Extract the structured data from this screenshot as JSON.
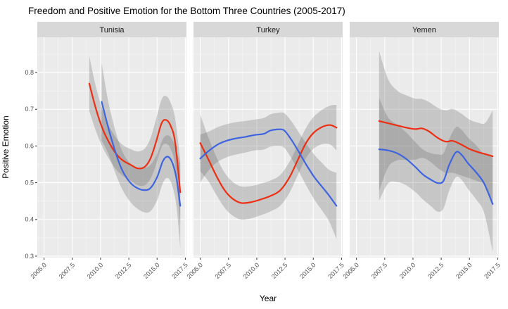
{
  "title": "Freedom and Positive Emotion for the Bottom Three Countries (2005-2017)",
  "axes": {
    "x_label": "Year",
    "y_label": "Positive Emotion",
    "x_tick_labels": [
      "2005.0",
      "2007.5",
      "2010.0",
      "2012.5",
      "2015.0",
      "2017.5"
    ],
    "x_tick_values": [
      2005,
      2007.5,
      2010,
      2012.5,
      2015,
      2017.5
    ],
    "x_minor_values": [
      2006.25,
      2008.75,
      2011.25,
      2013.75,
      2016.25
    ],
    "y_tick_labels": [
      "0.3",
      "0.4",
      "0.5",
      "0.6",
      "0.7",
      "0.8"
    ],
    "y_tick_values": [
      0.3,
      0.4,
      0.5,
      0.6,
      0.7,
      0.8
    ],
    "y_minor_values": [
      0.35,
      0.45,
      0.55,
      0.65,
      0.75,
      0.85
    ],
    "x_domain": [
      2004.4,
      2017.6
    ],
    "y_domain": [
      0.296,
      0.896
    ]
  },
  "colors": {
    "red_line": "#EE2E12",
    "blue_line": "#3E64E0",
    "band": "rgba(100,100,100,0.27)",
    "panel_bg": "#EBEBEB",
    "strip_bg": "#D8D8D8",
    "grid_major": "#FFFFFF",
    "grid_minor": "rgba(255,255,255,0.6)",
    "tick_text": "#4D4D4D",
    "tick_mark": "#333333",
    "strip_text": "#1A1A1A",
    "title_text": "#000000"
  },
  "chart_data": {
    "type": "line",
    "smoothed": true,
    "confidence_bands": true,
    "legend": "none",
    "facet_variable_values": [
      "Tunisia",
      "Turkey",
      "Yemen"
    ],
    "point_format": "[year, positive_emotion, band_halfwidth]",
    "facets": [
      {
        "label": "Tunisia",
        "series": [
          {
            "color": "red",
            "points": [
              [
                2009.0,
                0.77,
                0.075
              ],
              [
                2009.6,
                0.7,
                0.06
              ],
              [
                2010.2,
                0.645,
                0.05
              ],
              [
                2010.8,
                0.607,
                0.045
              ],
              [
                2011.4,
                0.578,
                0.043
              ],
              [
                2012.0,
                0.56,
                0.042
              ],
              [
                2012.7,
                0.548,
                0.043
              ],
              [
                2013.3,
                0.539,
                0.046
              ],
              [
                2013.9,
                0.543,
                0.05
              ],
              [
                2014.4,
                0.565,
                0.055
              ],
              [
                2014.9,
                0.61,
                0.062
              ],
              [
                2015.4,
                0.662,
                0.065
              ],
              [
                2015.8,
                0.671,
                0.065
              ],
              [
                2016.2,
                0.655,
                0.063
              ],
              [
                2016.6,
                0.61,
                0.065
              ],
              [
                2017.05,
                0.474,
                0.088
              ]
            ]
          },
          {
            "color": "blue",
            "points": [
              [
                2010.1,
                0.72,
                0.105
              ],
              [
                2010.7,
                0.648,
                0.07
              ],
              [
                2011.3,
                0.585,
                0.058
              ],
              [
                2011.9,
                0.535,
                0.052
              ],
              [
                2012.5,
                0.505,
                0.052
              ],
              [
                2013.1,
                0.488,
                0.055
              ],
              [
                2013.8,
                0.48,
                0.06
              ],
              [
                2014.4,
                0.485,
                0.063
              ],
              [
                2015.0,
                0.515,
                0.063
              ],
              [
                2015.5,
                0.558,
                0.06
              ],
              [
                2015.9,
                0.571,
                0.058
              ],
              [
                2016.3,
                0.558,
                0.062
              ],
              [
                2016.7,
                0.515,
                0.075
              ],
              [
                2017.05,
                0.437,
                0.115
              ]
            ]
          }
        ]
      },
      {
        "label": "Turkey",
        "series": [
          {
            "color": "red",
            "points": [
              [
                2005.0,
                0.608,
                0.077
              ],
              [
                2005.7,
                0.565,
                0.06
              ],
              [
                2006.4,
                0.52,
                0.052
              ],
              [
                2007.1,
                0.482,
                0.048
              ],
              [
                2007.8,
                0.458,
                0.046
              ],
              [
                2008.6,
                0.445,
                0.045
              ],
              [
                2009.5,
                0.447,
                0.044
              ],
              [
                2010.4,
                0.455,
                0.043
              ],
              [
                2011.3,
                0.465,
                0.042
              ],
              [
                2012.1,
                0.48,
                0.042
              ],
              [
                2012.9,
                0.515,
                0.042
              ],
              [
                2013.6,
                0.56,
                0.041
              ],
              [
                2014.3,
                0.605,
                0.041
              ],
              [
                2015.0,
                0.635,
                0.043
              ],
              [
                2015.8,
                0.652,
                0.047
              ],
              [
                2016.5,
                0.657,
                0.053
              ],
              [
                2017.05,
                0.65,
                0.062
              ]
            ]
          },
          {
            "color": "blue",
            "points": [
              [
                2005.0,
                0.566,
                0.065
              ],
              [
                2005.8,
                0.588,
                0.052
              ],
              [
                2006.6,
                0.605,
                0.047
              ],
              [
                2007.4,
                0.615,
                0.045
              ],
              [
                2008.2,
                0.621,
                0.044
              ],
              [
                2009.0,
                0.625,
                0.043
              ],
              [
                2009.8,
                0.63,
                0.042
              ],
              [
                2010.6,
                0.633,
                0.043
              ],
              [
                2011.2,
                0.642,
                0.044
              ],
              [
                2011.8,
                0.645,
                0.045
              ],
              [
                2012.4,
                0.643,
                0.047
              ],
              [
                2013.0,
                0.62,
                0.05
              ],
              [
                2013.7,
                0.585,
                0.053
              ],
              [
                2014.4,
                0.548,
                0.057
              ],
              [
                2015.1,
                0.515,
                0.061
              ],
              [
                2015.8,
                0.488,
                0.065
              ],
              [
                2016.4,
                0.465,
                0.07
              ],
              [
                2017.05,
                0.437,
                0.09
              ]
            ]
          }
        ]
      },
      {
        "label": "Yemen",
        "series": [
          {
            "color": "red",
            "points": [
              [
                2007.0,
                0.668,
                0.19
              ],
              [
                2007.8,
                0.662,
                0.12
              ],
              [
                2008.6,
                0.656,
                0.095
              ],
              [
                2009.4,
                0.65,
                0.088
              ],
              [
                2010.2,
                0.646,
                0.083
              ],
              [
                2010.8,
                0.648,
                0.08
              ],
              [
                2011.4,
                0.64,
                0.08
              ],
              [
                2012.2,
                0.622,
                0.082
              ],
              [
                2012.9,
                0.612,
                0.085
              ],
              [
                2013.5,
                0.614,
                0.087
              ],
              [
                2014.2,
                0.605,
                0.085
              ],
              [
                2015.0,
                0.592,
                0.08
              ],
              [
                2015.8,
                0.583,
                0.08
              ],
              [
                2016.4,
                0.578,
                0.085
              ],
              [
                2017.05,
                0.572,
                0.125
              ]
            ]
          },
          {
            "color": "blue",
            "points": [
              [
                2007.0,
                0.591,
                0.14
              ],
              [
                2007.8,
                0.588,
                0.09
              ],
              [
                2008.6,
                0.58,
                0.078
              ],
              [
                2009.4,
                0.565,
                0.072
              ],
              [
                2010.2,
                0.543,
                0.068
              ],
              [
                2010.9,
                0.522,
                0.068
              ],
              [
                2011.6,
                0.508,
                0.072
              ],
              [
                2012.2,
                0.499,
                0.078
              ],
              [
                2012.7,
                0.505,
                0.075
              ],
              [
                2013.2,
                0.548,
                0.07
              ],
              [
                2013.8,
                0.583,
                0.068
              ],
              [
                2014.3,
                0.576,
                0.068
              ],
              [
                2014.9,
                0.552,
                0.07
              ],
              [
                2015.6,
                0.528,
                0.074
              ],
              [
                2016.3,
                0.498,
                0.08
              ],
              [
                2017.05,
                0.442,
                0.13
              ]
            ]
          }
        ]
      }
    ]
  }
}
